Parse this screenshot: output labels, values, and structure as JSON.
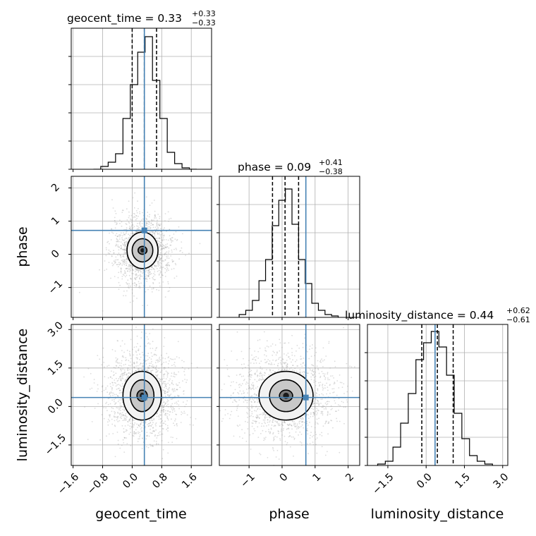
{
  "chart_data": {
    "type": "corner",
    "parameters": [
      "geocent_time",
      "phase",
      "luminosity_distance"
    ],
    "truths": {
      "geocent_time": 0.33,
      "phase": 0.72,
      "luminosity_distance": 0.35
    },
    "colors": {
      "truth": "#4682b4",
      "hist": "#000000",
      "grid": "#b0b0b0",
      "quantile": "#000000"
    },
    "grid": true,
    "titles": [
      {
        "param": "geocent_time",
        "text": "geocent_time = 0.33",
        "plus": "+0.33",
        "minus": "−0.33"
      },
      {
        "param": "phase",
        "text": "phase = 0.09",
        "plus": "+0.41",
        "minus": "−0.38"
      },
      {
        "param": "luminosity_distance",
        "text": "luminosity_distance = 0.44",
        "plus": "+0.62",
        "minus": "−0.61"
      }
    ],
    "axis_labels": {
      "x": [
        "geocent_time",
        "phase",
        "luminosity_distance"
      ],
      "y": [
        "phase",
        "luminosity_distance"
      ]
    },
    "ranges": {
      "geocent_time": [
        -1.65,
        2.15
      ],
      "phase": [
        -1.9,
        2.35
      ],
      "luminosity_distance": [
        -2.3,
        3.2
      ]
    },
    "ticks": {
      "geocent_time": {
        "values": [
          -1.6,
          -0.8,
          0.0,
          0.8,
          1.6
        ],
        "labels": [
          "−1.6",
          "−0.8",
          "0.0",
          "0.8",
          "1.6"
        ]
      },
      "phase": {
        "values": [
          -1,
          0,
          1,
          2
        ],
        "labels": [
          "−1",
          "0",
          "1",
          "2"
        ]
      },
      "luminosity_distance": {
        "values": [
          -1.5,
          0.0,
          1.5,
          3.0
        ],
        "labels": [
          "−1.5",
          "0.0",
          "1.5",
          "3.0"
        ]
      }
    },
    "quantiles": {
      "geocent_time": [
        0.0,
        0.33,
        0.66
      ],
      "phase": [
        -0.29,
        0.09,
        0.5
      ],
      "luminosity_distance": [
        -0.17,
        0.44,
        1.06
      ]
    },
    "histograms": {
      "geocent_time": {
        "bin_edges": [
          -1.05,
          -0.85,
          -0.65,
          -0.45,
          -0.25,
          -0.05,
          0.15,
          0.35,
          0.55,
          0.75,
          0.95,
          1.15,
          1.35,
          1.55,
          1.75
        ],
        "density": [
          0.0,
          0.02,
          0.05,
          0.11,
          0.36,
          0.6,
          0.83,
          0.94,
          0.63,
          0.36,
          0.12,
          0.04,
          0.01,
          0.0
        ]
      },
      "phase": {
        "bin_edges": [
          -1.3,
          -1.1,
          -0.9,
          -0.7,
          -0.5,
          -0.3,
          -0.1,
          0.1,
          0.3,
          0.5,
          0.7,
          0.9,
          1.1,
          1.3,
          1.5,
          1.7
        ],
        "density": [
          0.02,
          0.05,
          0.12,
          0.26,
          0.41,
          0.65,
          0.83,
          0.91,
          0.66,
          0.41,
          0.24,
          0.1,
          0.05,
          0.02,
          0.01
        ]
      },
      "luminosity_distance": {
        "bin_edges": [
          -1.9,
          -1.6,
          -1.3,
          -1.0,
          -0.7,
          -0.4,
          -0.1,
          0.2,
          0.5,
          0.8,
          1.1,
          1.4,
          1.7,
          2.0,
          2.3,
          2.6
        ],
        "density": [
          0.01,
          0.03,
          0.13,
          0.3,
          0.51,
          0.75,
          0.87,
          0.95,
          0.84,
          0.64,
          0.37,
          0.19,
          0.07,
          0.03,
          0.01
        ]
      }
    },
    "contours_2d": [
      {
        "x": "geocent_time",
        "y": "phase",
        "center": [
          0.28,
          0.12
        ],
        "sigma_x": [
          0.12,
          0.28,
          0.42
        ],
        "sigma_y": [
          0.12,
          0.35,
          0.55
        ]
      },
      {
        "x": "geocent_time",
        "y": "luminosity_distance",
        "center": [
          0.27,
          0.42
        ],
        "sigma_x": [
          0.14,
          0.32,
          0.52
        ],
        "sigma_y": [
          0.22,
          0.62,
          0.95
        ]
      },
      {
        "x": "phase",
        "y": "luminosity_distance",
        "center": [
          0.12,
          0.42
        ],
        "sigma_x": [
          0.2,
          0.5,
          0.82
        ],
        "sigma_y": [
          0.22,
          0.62,
          0.95
        ]
      }
    ]
  }
}
